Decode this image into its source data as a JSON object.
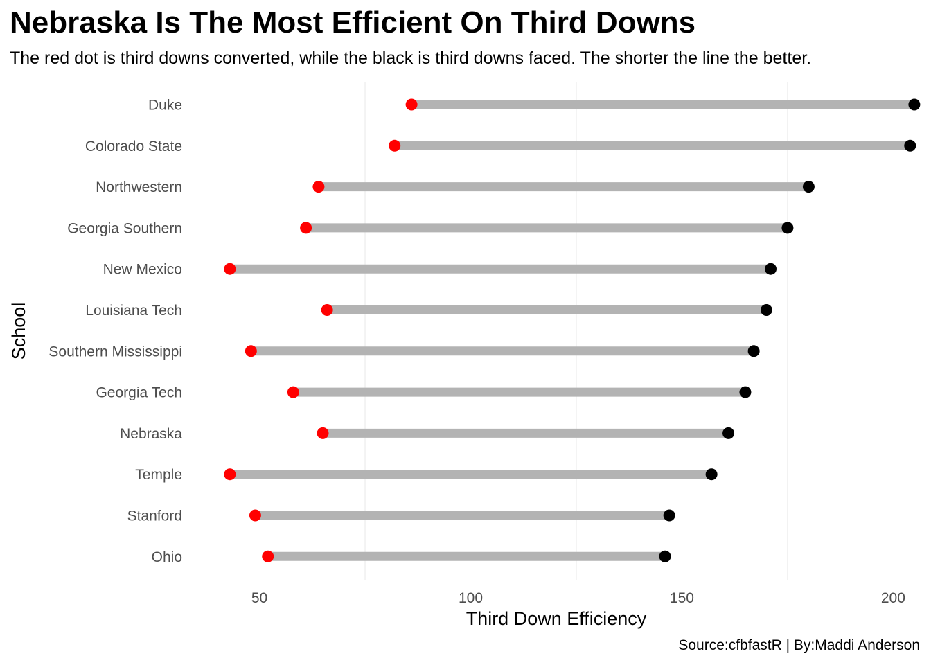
{
  "chart_data": {
    "type": "dumbbell",
    "title": "Nebraska Is The Most Efficient On Third Downs",
    "subtitle": "The red dot is third downs converted, while the black is third downs faced. The shorter the line the better.",
    "caption": "Source:cfbfastR | By:Maddi Anderson",
    "xlabel": "Third Down Efficiency",
    "ylabel": "School",
    "xlim": [
      34.5,
      206
    ],
    "x_ticks": [
      50,
      100,
      150,
      200
    ],
    "grid": "vertical",
    "colors": {
      "converted": "#ff0000",
      "faced": "#000000",
      "segment": "#b3b3b3",
      "grid": "#ebebeb"
    },
    "categories": [
      "Duke",
      "Colorado State",
      "Northwestern",
      "Georgia Southern",
      "New Mexico",
      "Louisiana Tech",
      "Southern Mississippi",
      "Georgia Tech",
      "Nebraska",
      "Temple",
      "Stanford",
      "Ohio"
    ],
    "series": [
      {
        "name": "Third downs converted",
        "values": [
          86,
          82,
          64,
          61,
          43,
          66,
          48,
          58,
          65,
          43,
          49,
          52
        ]
      },
      {
        "name": "Third downs faced",
        "values": [
          205,
          204,
          180,
          175,
          171,
          170,
          167,
          165,
          161,
          157,
          147,
          146
        ]
      }
    ]
  }
}
